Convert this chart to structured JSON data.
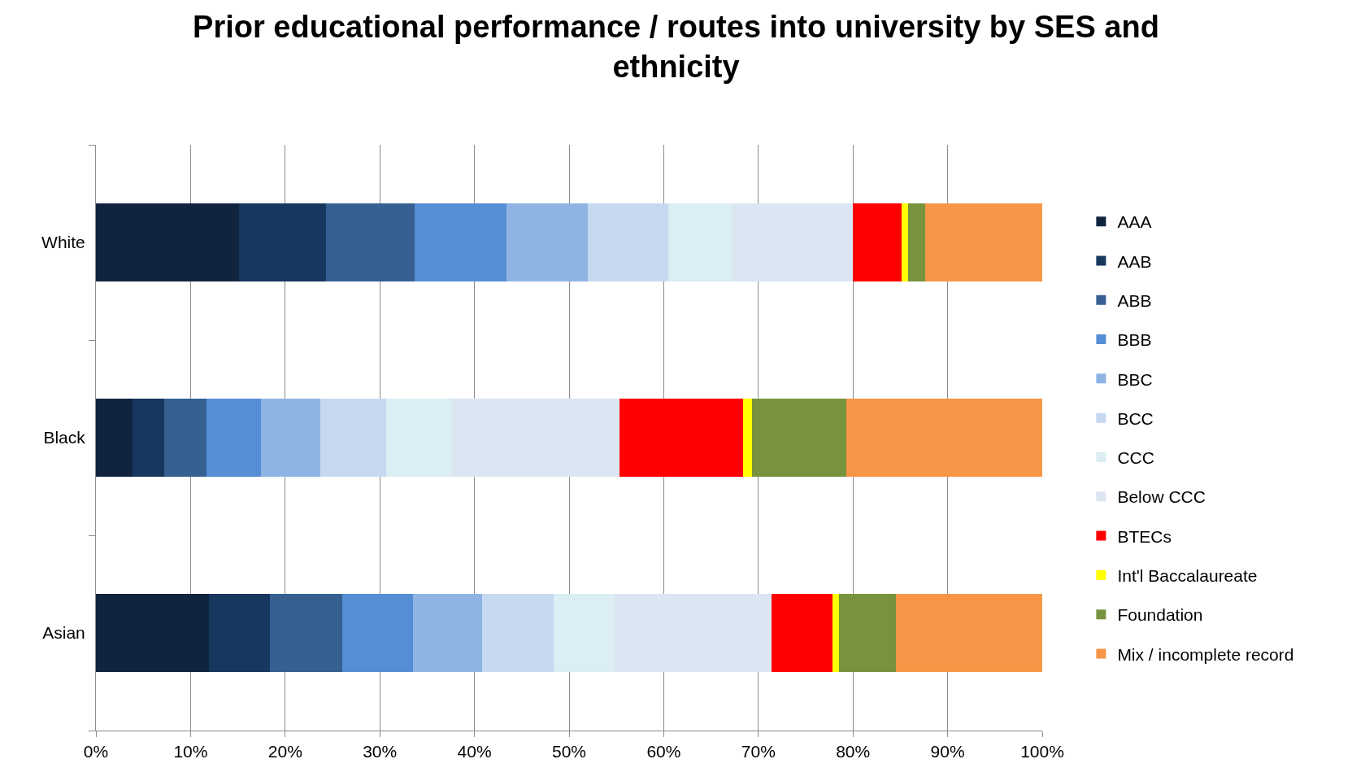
{
  "chart_data": {
    "type": "bar",
    "orientation": "horizontal",
    "stacked": true,
    "title": "Prior educational performance / routes into university by SES and ethnicity",
    "categories": [
      "White",
      "Black",
      "Asian"
    ],
    "series": [
      {
        "name": "AAA",
        "color": "#11243f",
        "values": [
          15.1,
          3.9,
          11.9
        ]
      },
      {
        "name": "AAB",
        "color": "#17375e",
        "values": [
          9.2,
          3.3,
          6.5
        ]
      },
      {
        "name": "ABB",
        "color": "#366092",
        "values": [
          9.4,
          4.5,
          7.6
        ]
      },
      {
        "name": "BBB",
        "color": "#558ed5",
        "values": [
          9.7,
          5.7,
          7.5
        ]
      },
      {
        "name": "BBC",
        "color": "#8eb4e3",
        "values": [
          8.6,
          6.3,
          7.3
        ]
      },
      {
        "name": "BCC",
        "color": "#c6d9f1",
        "values": [
          8.5,
          7.0,
          7.6
        ]
      },
      {
        "name": "CCC",
        "color": "#dbeef4",
        "values": [
          6.8,
          6.8,
          6.4
        ]
      },
      {
        "name": "Below CCC",
        "color": "#dce6f2",
        "values": [
          12.7,
          17.8,
          16.6
        ]
      },
      {
        "name": "BTECs",
        "color": "#ff0000",
        "values": [
          5.1,
          13.1,
          6.4
        ]
      },
      {
        "name": "Int'l Baccalaureate",
        "color": "#ffff00",
        "values": [
          0.7,
          0.9,
          0.7
        ]
      },
      {
        "name": "Foundation",
        "color": "#77933c",
        "values": [
          1.8,
          10.0,
          6.0
        ]
      },
      {
        "name": "Mix / incomplete record",
        "color": "#f79646",
        "values": [
          12.4,
          20.7,
          15.5
        ]
      }
    ],
    "xlim": [
      0,
      100
    ],
    "xticks": [
      {
        "value": 0,
        "label": "0%"
      },
      {
        "value": 10,
        "label": "10%"
      },
      {
        "value": 20,
        "label": "20%"
      },
      {
        "value": 30,
        "label": "30%"
      },
      {
        "value": 40,
        "label": "40%"
      },
      {
        "value": 50,
        "label": "50%"
      },
      {
        "value": 60,
        "label": "60%"
      },
      {
        "value": 70,
        "label": "70%"
      },
      {
        "value": 80,
        "label": "80%"
      },
      {
        "value": 90,
        "label": "90%"
      },
      {
        "value": 100,
        "label": "100%"
      }
    ],
    "grid": "x",
    "legend": "right"
  }
}
